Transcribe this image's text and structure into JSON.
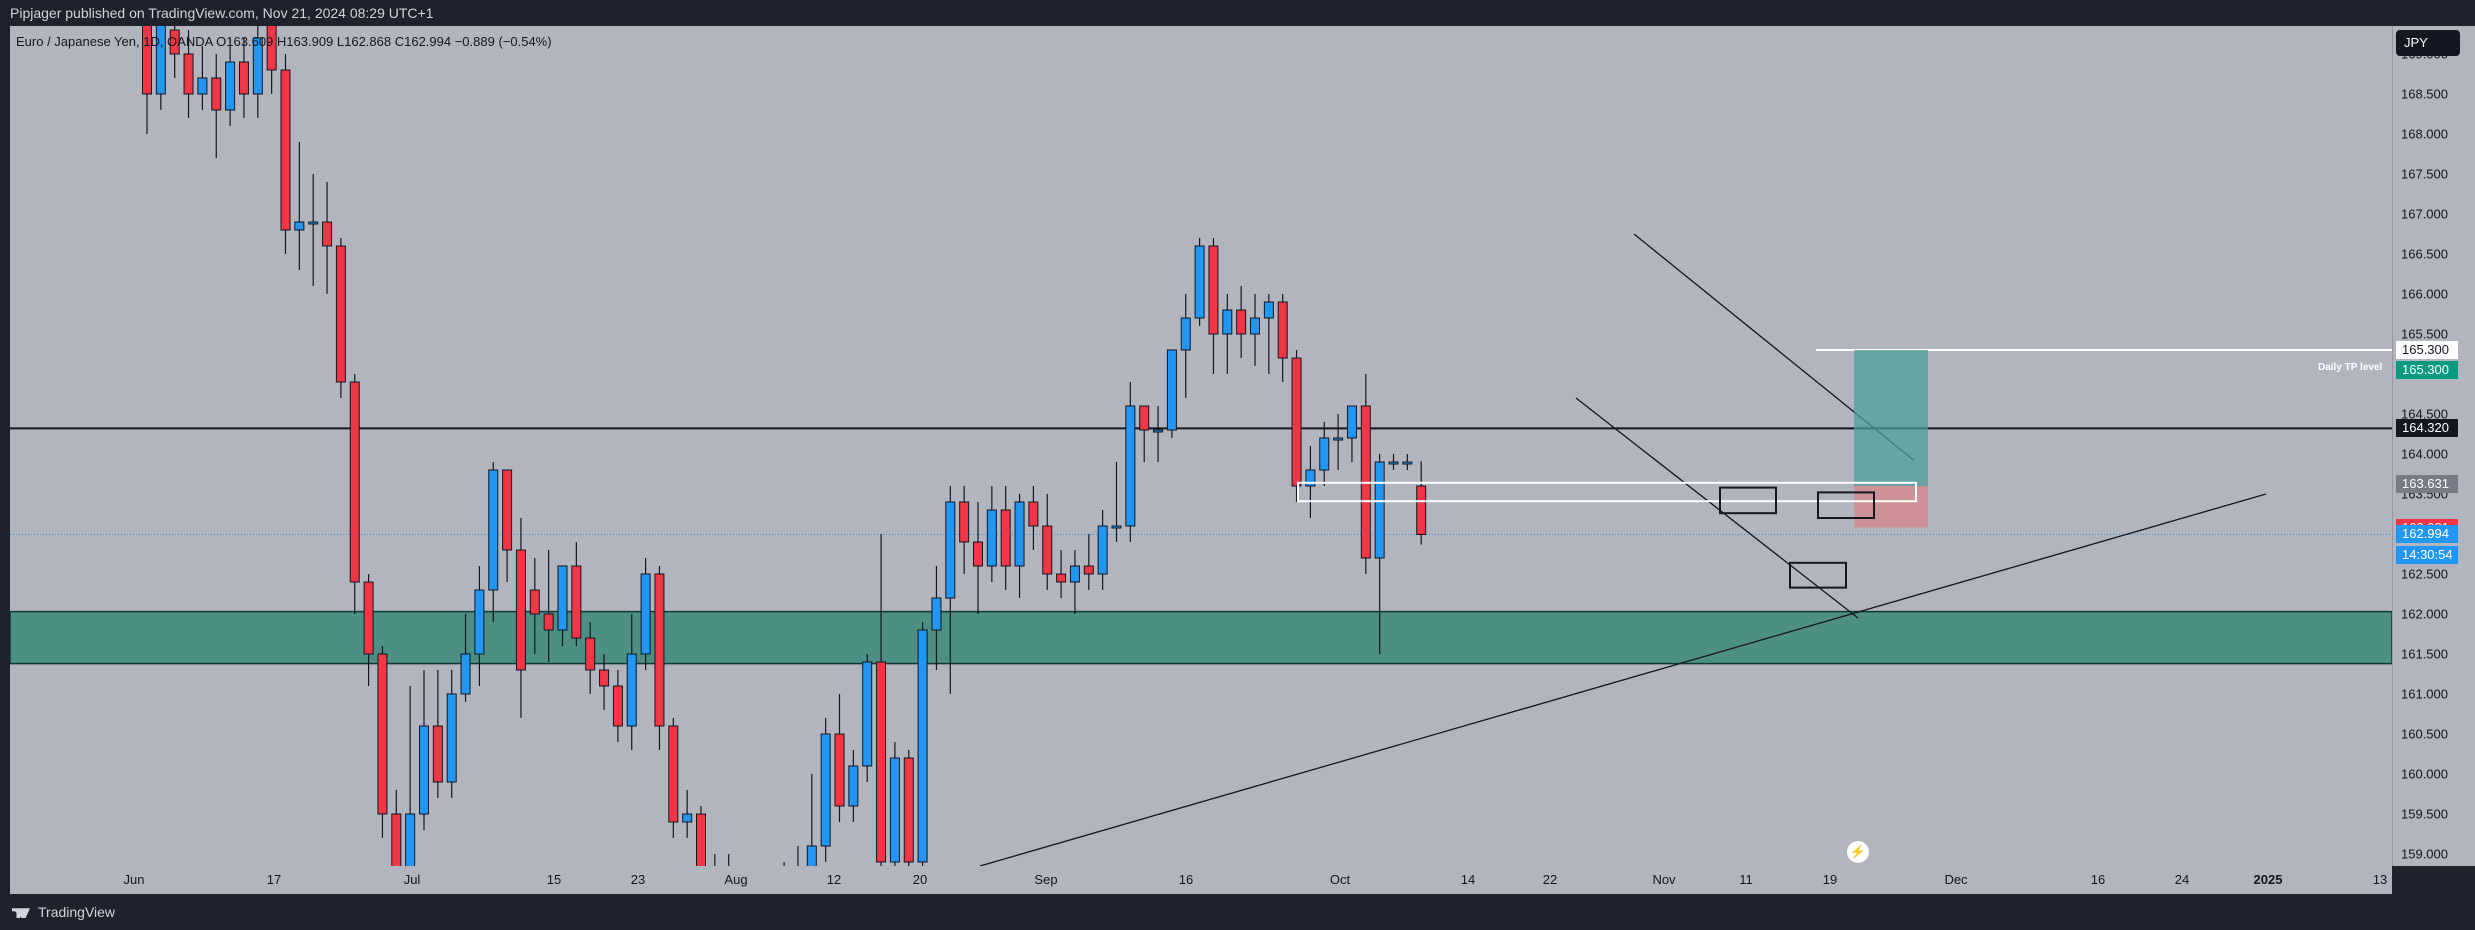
{
  "publisher_line": "Pipjager published on TradingView.com, Nov 21, 2024 08:29 UTC+1",
  "legend": "Euro / Japanese Yen, 1D, OANDA  O163.609  H163.909  L162.868  C162.994  −0.889 (−0.54%)",
  "currency_button": "JPY",
  "brand": "TradingView",
  "annotations": {
    "tp_text": "Daily TP level"
  },
  "colors": {
    "up": "#2196f3",
    "down": "#f23645",
    "zone_fill": "#4e8f84",
    "background": "#b2b5be",
    "frame": "#1e222d"
  },
  "price_badges": [
    {
      "label": "165.300",
      "bg": "#ffffff",
      "fg": "#131722"
    },
    {
      "label": "165.300",
      "bg": "#089981",
      "fg": "#ffffff"
    },
    {
      "label": "164.320",
      "bg": "#131722",
      "fg": "#ffffff"
    },
    {
      "label": "163.631",
      "bg": "#787b86",
      "fg": "#ffffff"
    },
    {
      "label": "163.081",
      "bg": "#f23645",
      "fg": "#ffffff"
    },
    {
      "label": "162.994",
      "bg": "#2196f3",
      "fg": "#ffffff"
    },
    {
      "label": "14:30:54",
      "bg": "#2196f3",
      "fg": "#ffffff"
    }
  ],
  "chart_data": {
    "type": "candlestick",
    "symbol": "EURJPY",
    "timeframe": "1D",
    "ylim": [
      158.85,
      169.35
    ],
    "price_ticks": [
      169.0,
      168.5,
      168.0,
      167.5,
      167.0,
      166.5,
      166.0,
      165.5,
      165.0,
      164.5,
      164.0,
      163.5,
      163.0,
      162.5,
      162.0,
      161.5,
      161.0,
      160.5,
      160.0,
      159.5,
      159.0
    ],
    "time_labels": [
      {
        "label": "Jun",
        "bold": false
      },
      {
        "label": "17",
        "bold": false
      },
      {
        "label": "Jul",
        "bold": false
      },
      {
        "label": "15",
        "bold": false
      },
      {
        "label": "23",
        "bold": false
      },
      {
        "label": "Aug",
        "bold": false
      },
      {
        "label": "12",
        "bold": false
      },
      {
        "label": "20",
        "bold": false
      },
      {
        "label": "Sep",
        "bold": false
      },
      {
        "label": "16",
        "bold": false
      },
      {
        "label": "Oct",
        "bold": false
      },
      {
        "label": "14",
        "bold": false
      },
      {
        "label": "22",
        "bold": false
      },
      {
        "label": "Nov",
        "bold": false
      },
      {
        "label": "11",
        "bold": false
      },
      {
        "label": "19",
        "bold": false
      },
      {
        "label": "Dec",
        "bold": false
      },
      {
        "label": "16",
        "bold": false
      },
      {
        "label": "24",
        "bold": false
      },
      {
        "label": "2025",
        "bold": true
      },
      {
        "label": "13",
        "bold": false
      }
    ],
    "candles": [
      [
        169.5,
        168.5,
        170.0,
        168.0
      ],
      [
        168.5,
        169.4,
        169.8,
        168.3
      ],
      [
        169.3,
        169.0,
        169.6,
        168.7
      ],
      [
        169.0,
        168.5,
        169.3,
        168.2
      ],
      [
        168.5,
        168.7,
        169.1,
        168.3
      ],
      [
        168.7,
        168.3,
        169.0,
        167.7
      ],
      [
        168.3,
        168.9,
        169.2,
        168.1
      ],
      [
        168.9,
        168.5,
        169.2,
        168.2
      ],
      [
        168.5,
        169.2,
        169.5,
        168.2
      ],
      [
        169.4,
        168.8,
        169.6,
        168.5
      ],
      [
        168.8,
        166.8,
        169.0,
        166.5
      ],
      [
        166.8,
        166.9,
        167.9,
        166.3
      ],
      [
        166.9,
        166.9,
        167.5,
        166.1
      ],
      [
        166.9,
        166.6,
        167.4,
        166.0
      ],
      [
        166.6,
        164.9,
        166.7,
        164.7
      ],
      [
        164.9,
        162.4,
        165.0,
        162.0
      ],
      [
        162.4,
        161.5,
        162.5,
        161.1
      ],
      [
        161.5,
        159.5,
        161.6,
        159.2
      ],
      [
        159.5,
        158.6,
        159.8,
        158.2
      ],
      [
        158.6,
        159.5,
        161.1,
        158.3
      ],
      [
        159.5,
        160.6,
        161.3,
        159.3
      ],
      [
        160.6,
        159.9,
        161.3,
        159.7
      ],
      [
        159.9,
        161.0,
        161.3,
        159.7
      ],
      [
        161.0,
        161.5,
        162.0,
        160.9
      ],
      [
        161.5,
        162.3,
        162.6,
        161.1
      ],
      [
        162.3,
        163.8,
        163.9,
        161.9
      ],
      [
        163.8,
        162.8,
        163.8,
        162.4
      ],
      [
        162.8,
        161.3,
        163.2,
        160.7
      ],
      [
        162.3,
        162.0,
        162.7,
        161.5
      ],
      [
        162.0,
        161.8,
        162.8,
        161.4
      ],
      [
        161.8,
        162.6,
        162.6,
        161.6
      ],
      [
        162.6,
        161.7,
        162.9,
        161.6
      ],
      [
        161.7,
        161.3,
        161.9,
        161.0
      ],
      [
        161.3,
        161.1,
        161.5,
        160.8
      ],
      [
        161.1,
        160.6,
        161.3,
        160.4
      ],
      [
        160.6,
        161.5,
        162.0,
        160.3
      ],
      [
        161.5,
        162.5,
        162.7,
        161.3
      ],
      [
        162.5,
        160.6,
        162.6,
        160.3
      ],
      [
        160.6,
        159.4,
        160.7,
        159.2
      ],
      [
        159.4,
        159.5,
        159.8,
        159.2
      ],
      [
        159.5,
        158.5,
        159.6,
        158.2
      ],
      [
        158.5,
        158.8,
        159.0,
        158.3
      ],
      [
        158.8,
        158.1,
        159.0,
        157.8
      ],
      [
        158.1,
        158.5,
        158.8,
        157.8
      ],
      [
        158.5,
        158.1,
        158.7,
        157.9
      ],
      [
        158.1,
        158.7,
        158.8,
        157.8
      ],
      [
        158.7,
        158.2,
        158.9,
        157.9
      ],
      [
        158.2,
        158.8,
        159.1,
        158.1
      ],
      [
        158.8,
        159.1,
        160.0,
        158.7
      ],
      [
        159.1,
        160.5,
        160.7,
        158.9
      ],
      [
        160.5,
        159.6,
        161.0,
        159.4
      ],
      [
        159.6,
        160.1,
        160.3,
        159.4
      ],
      [
        160.1,
        161.4,
        161.5,
        159.9
      ],
      [
        161.4,
        158.9,
        163.0,
        158.5
      ],
      [
        158.9,
        160.2,
        160.4,
        158.8
      ],
      [
        160.2,
        158.9,
        160.3,
        158.7
      ],
      [
        158.9,
        161.8,
        161.9,
        158.8
      ],
      [
        161.8,
        162.2,
        162.6,
        161.3
      ],
      [
        162.2,
        163.4,
        163.6,
        161.0
      ],
      [
        163.4,
        162.9,
        163.6,
        162.5
      ],
      [
        162.9,
        162.6,
        163.4,
        162.0
      ],
      [
        162.6,
        163.3,
        163.6,
        162.4
      ],
      [
        163.3,
        162.6,
        163.6,
        162.3
      ],
      [
        162.6,
        163.4,
        163.5,
        162.2
      ],
      [
        163.4,
        163.1,
        163.6,
        162.8
      ],
      [
        163.1,
        162.5,
        163.5,
        162.3
      ],
      [
        162.5,
        162.4,
        162.8,
        162.2
      ],
      [
        162.4,
        162.6,
        162.8,
        162.0
      ],
      [
        162.6,
        162.5,
        163.0,
        162.3
      ],
      [
        162.5,
        163.1,
        163.3,
        162.3
      ],
      [
        163.1,
        163.1,
        163.9,
        162.9
      ],
      [
        163.1,
        164.6,
        164.9,
        162.9
      ],
      [
        164.6,
        164.3,
        164.6,
        163.9
      ],
      [
        164.3,
        164.3,
        164.6,
        163.9
      ],
      [
        164.3,
        165.3,
        165.2,
        164.2
      ],
      [
        165.3,
        165.7,
        166.0,
        164.7
      ],
      [
        165.7,
        166.6,
        166.7,
        165.6
      ],
      [
        166.6,
        165.5,
        166.7,
        165.0
      ],
      [
        165.5,
        165.8,
        166.0,
        165.0
      ],
      [
        165.8,
        165.5,
        166.1,
        165.2
      ],
      [
        165.5,
        165.7,
        166.0,
        165.1
      ],
      [
        165.7,
        165.9,
        166.0,
        165.0
      ],
      [
        165.9,
        165.2,
        166.0,
        164.9
      ],
      [
        165.2,
        163.6,
        165.3,
        163.4
      ],
      [
        163.6,
        163.8,
        164.1,
        163.2
      ],
      [
        163.8,
        164.2,
        164.4,
        163.6
      ],
      [
        164.2,
        164.2,
        164.5,
        163.8
      ],
      [
        164.2,
        164.6,
        164.6,
        163.9
      ],
      [
        164.6,
        162.7,
        165.0,
        162.5
      ],
      [
        162.7,
        163.9,
        164.0,
        161.5
      ],
      [
        163.9,
        163.9,
        164.0,
        163.8
      ],
      [
        163.9,
        163.9,
        164.0,
        163.8
      ],
      [
        163.6,
        162.994,
        163.909,
        162.868
      ]
    ]
  }
}
